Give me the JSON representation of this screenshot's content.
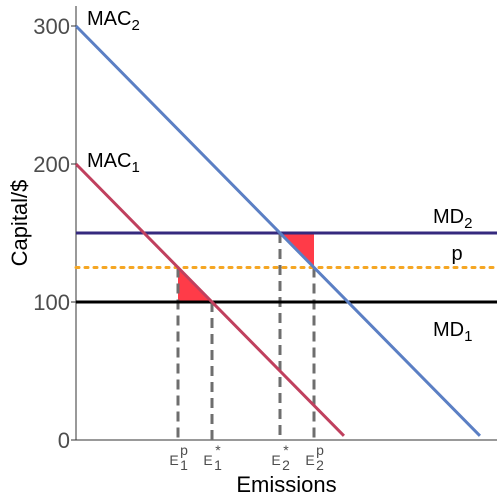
{
  "chart_data": {
    "type": "line",
    "title": "",
    "xlabel": "Emissions",
    "ylabel": "Capital/$",
    "ylim": [
      0,
      310
    ],
    "xlim": [
      0,
      120
    ],
    "yticks": [
      "0",
      "100",
      "200",
      "300"
    ],
    "grid": false,
    "colors": {
      "mac1": "#c0405e",
      "mac2": "#5b7fc4",
      "md1": "#000000",
      "md2": "#352a7e",
      "p": "#f5a623",
      "triangle": "#ff3b48",
      "guide": "#6e6e6e"
    },
    "curves": {
      "mac1": {
        "label_main": "MAC",
        "label_sub": "1",
        "intercept": 200,
        "slope": -2.5
      },
      "mac2": {
        "label_main": "MAC",
        "label_sub": "2",
        "intercept": 300,
        "slope": -2.5
      },
      "md1": {
        "label_main": "MD",
        "label_sub": "1",
        "value": 100
      },
      "md2": {
        "label_main": "MD",
        "label_sub": "2",
        "value": 150
      },
      "p": {
        "label": "p",
        "value": 125
      }
    },
    "emission_points": [
      {
        "key": "e1p",
        "main": "E",
        "sub": "1",
        "sup": "p",
        "x": 30
      },
      {
        "key": "e1s",
        "main": "E",
        "sub": "1",
        "sup": "*",
        "x": 40
      },
      {
        "key": "e2s",
        "main": "E",
        "sub": "2",
        "sup": "*",
        "x": 60
      },
      {
        "key": "e2p",
        "main": "E",
        "sub": "2",
        "sup": "p",
        "x": 70
      }
    ]
  }
}
